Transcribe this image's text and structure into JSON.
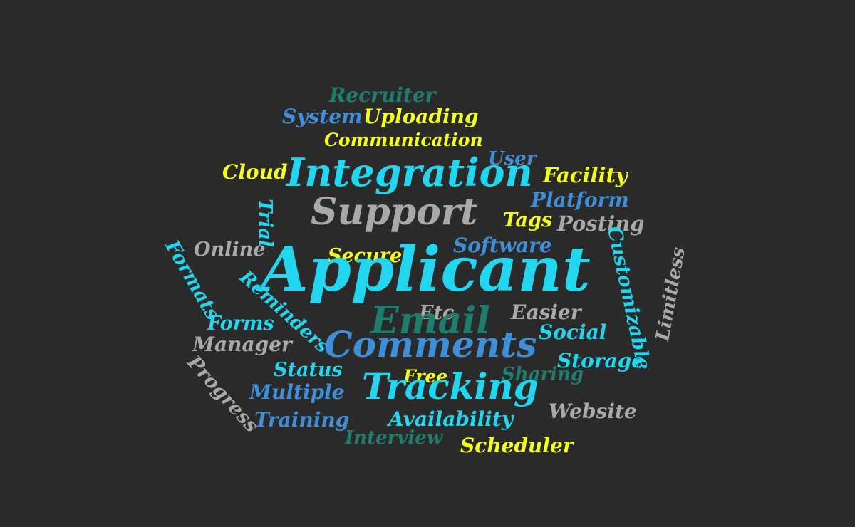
{
  "words": {
    "recruiter": "Recruiter",
    "system": "System",
    "uploading": "Uploading",
    "communication": "Communication",
    "user": "User",
    "cloud": "Cloud",
    "integration": "Integration",
    "facility": "Facility",
    "platform": "Platform",
    "trial": "Trial",
    "support": "Support",
    "tags": "Tags",
    "posting": "Posting",
    "formats": "Formats",
    "online": "Online",
    "secure": "Secure",
    "software": "Software",
    "customizable": "Customizable",
    "limitless": "Limitless",
    "applicant": "Applicant",
    "reminders": "Reminders",
    "etc": "Etc",
    "easier": "Easier",
    "forms": "Forms",
    "email": "Email",
    "social": "Social",
    "manager": "Manager",
    "comments": "Comments",
    "storage": "Storage",
    "progress": "Progress",
    "status": "Status",
    "free": "Free",
    "sharing": "Sharing",
    "multiple": "Multiple",
    "tracking": "Tracking",
    "website": "Website",
    "training": "Training",
    "availability": "Availability",
    "interview": "Interview",
    "scheduler": "Scheduler"
  },
  "colors": {
    "background": "#2a2a2a",
    "cyan": "#21d6ee",
    "blue": "#3f8fd8",
    "yellow": "#f5ff1e",
    "grey": "#a9a9a9",
    "teal": "#1f7d6e"
  }
}
